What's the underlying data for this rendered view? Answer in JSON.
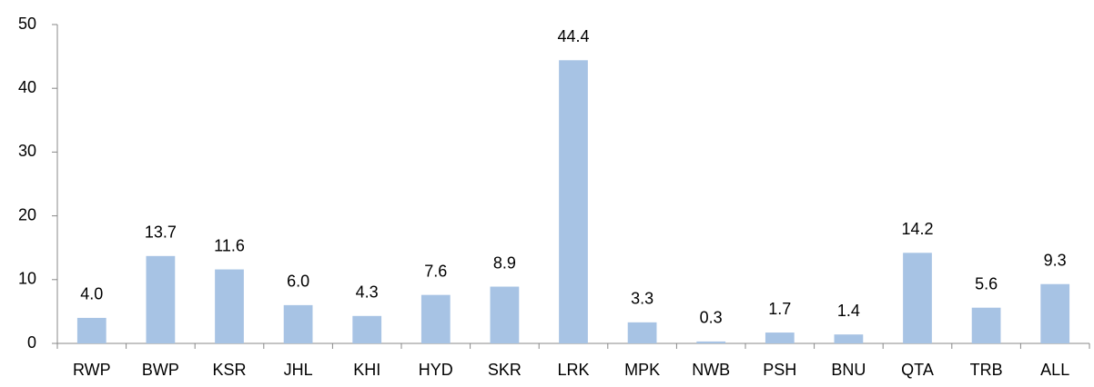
{
  "chart_data": {
    "type": "bar",
    "categories": [
      "RWP",
      "BWP",
      "KSR",
      "JHL",
      "KHI",
      "HYD",
      "SKR",
      "LRK",
      "MPK",
      "NWB",
      "PSH",
      "BNU",
      "QTA",
      "TRB",
      "ALL"
    ],
    "values": [
      4.0,
      13.7,
      11.6,
      6.0,
      4.3,
      7.6,
      8.9,
      44.4,
      3.3,
      0.3,
      1.7,
      1.4,
      14.2,
      5.6,
      9.3
    ],
    "value_labels": [
      "4.0",
      "13.7",
      "11.6",
      "6.0",
      "4.3",
      "7.6",
      "8.9",
      "44.4",
      "3.3",
      "0.3",
      "1.7",
      "1.4",
      "14.2",
      "5.6",
      "9.3"
    ],
    "color": "#a7c3e4",
    "ylim": [
      0,
      50
    ],
    "yticks": [
      0,
      10,
      20,
      30,
      40,
      50
    ],
    "grid": false
  }
}
